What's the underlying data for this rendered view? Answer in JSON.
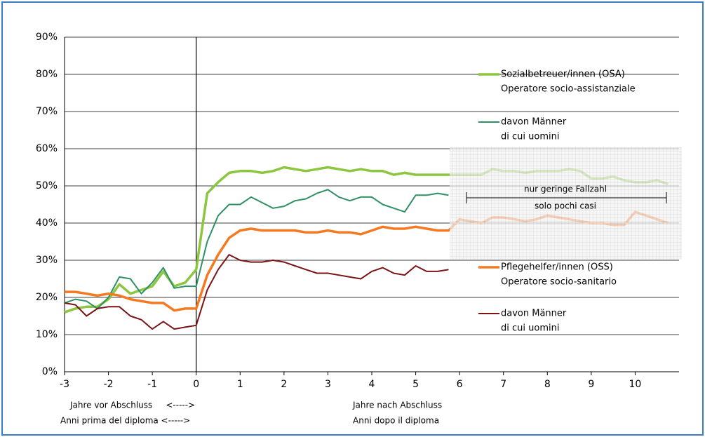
{
  "chart_data": {
    "type": "line",
    "x": [
      -3,
      -2.75,
      -2.5,
      -2.25,
      -2,
      -1.75,
      -1.5,
      -1.25,
      -1,
      -0.75,
      -0.5,
      -0.25,
      0,
      0.25,
      0.5,
      0.75,
      1,
      1.25,
      1.5,
      1.75,
      2,
      2.25,
      2.5,
      2.75,
      3,
      3.25,
      3.5,
      3.75,
      4,
      4.25,
      4.5,
      4.75,
      5,
      5.25,
      5.5,
      5.75,
      6,
      6.25,
      6.5,
      6.75,
      7,
      7.25,
      7.5,
      7.75,
      8,
      8.25,
      8.5,
      8.75,
      9,
      9.25,
      9.5,
      9.75,
      10,
      10.25,
      10.5,
      10.75
    ],
    "series": [
      {
        "name": "Sozialbetreuer/innen (OSA)",
        "name_it": "Operatore socio-assistanziale",
        "color": "#8cc63f",
        "width": 3.5,
        "values": [
          16,
          17,
          17.5,
          17.5,
          19.5,
          23.5,
          21,
          22,
          23,
          27,
          23,
          24,
          27.5,
          48,
          51,
          53.5,
          54,
          54,
          53.5,
          54,
          55,
          54.5,
          54,
          54.5,
          55,
          54.5,
          54,
          54.5,
          54,
          54,
          53,
          53.5,
          53,
          53,
          53,
          53,
          53,
          53,
          53,
          54.5,
          54,
          54,
          53.5,
          54,
          54,
          54,
          54.5,
          54,
          52,
          52,
          52.5,
          51.5,
          51,
          51,
          51.5,
          50.5
        ]
      },
      {
        "name": "davon Männer",
        "name_it": "di cui uomini",
        "color": "#2e9163",
        "width": 2,
        "values": [
          18.5,
          19.5,
          19,
          17,
          20,
          25.5,
          25,
          21,
          24,
          28,
          22.5,
          23,
          23,
          35,
          42,
          45,
          45,
          47,
          45.5,
          44,
          44.5,
          46,
          46.5,
          48,
          49,
          47,
          46,
          47,
          47,
          45,
          44,
          43,
          47.5,
          47.5,
          48,
          47.5,
          null,
          null,
          null,
          null,
          null,
          null,
          null,
          null,
          null,
          null,
          null,
          null,
          null,
          null,
          null,
          null,
          null,
          null,
          null,
          null
        ]
      },
      {
        "name": "Pflegehelfer/innen (OSS)",
        "name_it": "Operatore socio-sanitario",
        "color": "#f47920",
        "width": 3.5,
        "values": [
          21.5,
          21.5,
          21,
          20.5,
          21,
          20.5,
          19.5,
          19,
          18.5,
          18.5,
          16.5,
          17,
          17,
          26,
          31.5,
          36,
          38,
          38.5,
          38,
          38,
          38,
          38,
          37.5,
          37.5,
          38,
          37.5,
          37.5,
          37,
          38,
          39,
          38.5,
          38.5,
          39,
          38.5,
          38,
          38,
          41,
          40.5,
          40,
          41.5,
          41.5,
          41,
          40.5,
          41,
          42,
          41.5,
          41,
          40.5,
          40,
          40,
          39.5,
          39.5,
          43,
          42,
          41,
          40
        ]
      },
      {
        "name": "davon Männer",
        "name_it": "di cui uomini",
        "color": "#7a1416",
        "width": 2,
        "values": [
          18.5,
          18,
          15,
          17,
          17.5,
          17.5,
          15,
          14,
          11.5,
          13.5,
          11.5,
          12,
          12.5,
          22,
          27.5,
          31.5,
          30,
          29.5,
          29.5,
          30,
          29.5,
          28.5,
          27.5,
          26.5,
          26.5,
          26,
          25.5,
          25,
          27,
          28,
          26.5,
          26,
          28.5,
          27,
          27,
          27.5,
          null,
          null,
          null,
          null,
          null,
          null,
          null,
          null,
          null,
          null,
          null,
          null,
          null,
          null,
          null,
          null,
          null,
          null,
          null,
          null
        ]
      }
    ],
    "xlim": [
      -3,
      11
    ],
    "xticks": [
      -3,
      -2,
      -1,
      0,
      1,
      2,
      3,
      4,
      5,
      6,
      7,
      8,
      9,
      10
    ],
    "ylim": [
      0,
      90
    ],
    "yticks": [
      {
        "value": 0,
        "label": "0%"
      },
      {
        "value": 10,
        "label": "10%"
      },
      {
        "value": 20,
        "label": "20%"
      },
      {
        "value": 30,
        "label": "30%"
      },
      {
        "value": 40,
        "label": "40%"
      },
      {
        "value": 50,
        "label": "50%"
      },
      {
        "value": 60,
        "label": "60%"
      },
      {
        "value": 70,
        "label": "70%"
      },
      {
        "value": 80,
        "label": "80%"
      },
      {
        "value": 90,
        "label": "90%"
      }
    ],
    "grid": true,
    "annotations": {
      "low_cases_de": "nur geringe Fallzahl",
      "low_cases_it": "solo pochi casi",
      "before_de": "Jahre vor Abschluss     <----->",
      "before_it": "Anni prima del diploma <----->",
      "after_de": "Jahre nach Abschluss",
      "after_it": "Anni dopo il diploma"
    }
  }
}
